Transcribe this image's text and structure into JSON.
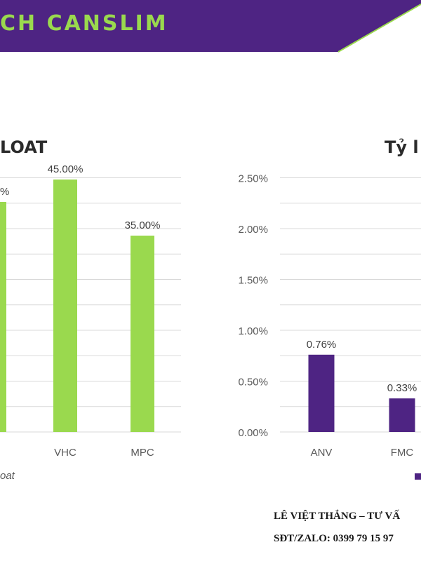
{
  "header": {
    "title": "CH CANSLIM",
    "banner_color": "#4e2483",
    "title_color": "#9ad94e"
  },
  "chart_data": [
    {
      "type": "bar",
      "title": "LOAT",
      "categories": [
        "",
        "VHC",
        "MPC"
      ],
      "values": [
        null,
        45.0,
        35.0
      ],
      "data_labels": [
        "%",
        "45.00%",
        "35.00%"
      ],
      "legend": "oat",
      "bar_color": "#9ad94e",
      "grid": true
    },
    {
      "type": "bar",
      "title": "Tỷ l",
      "categories": [
        "ANV",
        "FMC"
      ],
      "values": [
        0.76,
        0.33
      ],
      "data_labels": [
        "0.76%",
        "0.33%"
      ],
      "y_ticks": [
        "0.00%",
        "0.50%",
        "1.00%",
        "1.50%",
        "2.00%",
        "2.50%"
      ],
      "ylim": [
        0,
        2.5
      ],
      "bar_color": "#4e2483",
      "grid": true
    }
  ],
  "footer": {
    "name": "LÊ VIỆT THẮNG – TƯ VẤ",
    "phone": "SĐT/ZALO:  0399 79 15 97"
  }
}
